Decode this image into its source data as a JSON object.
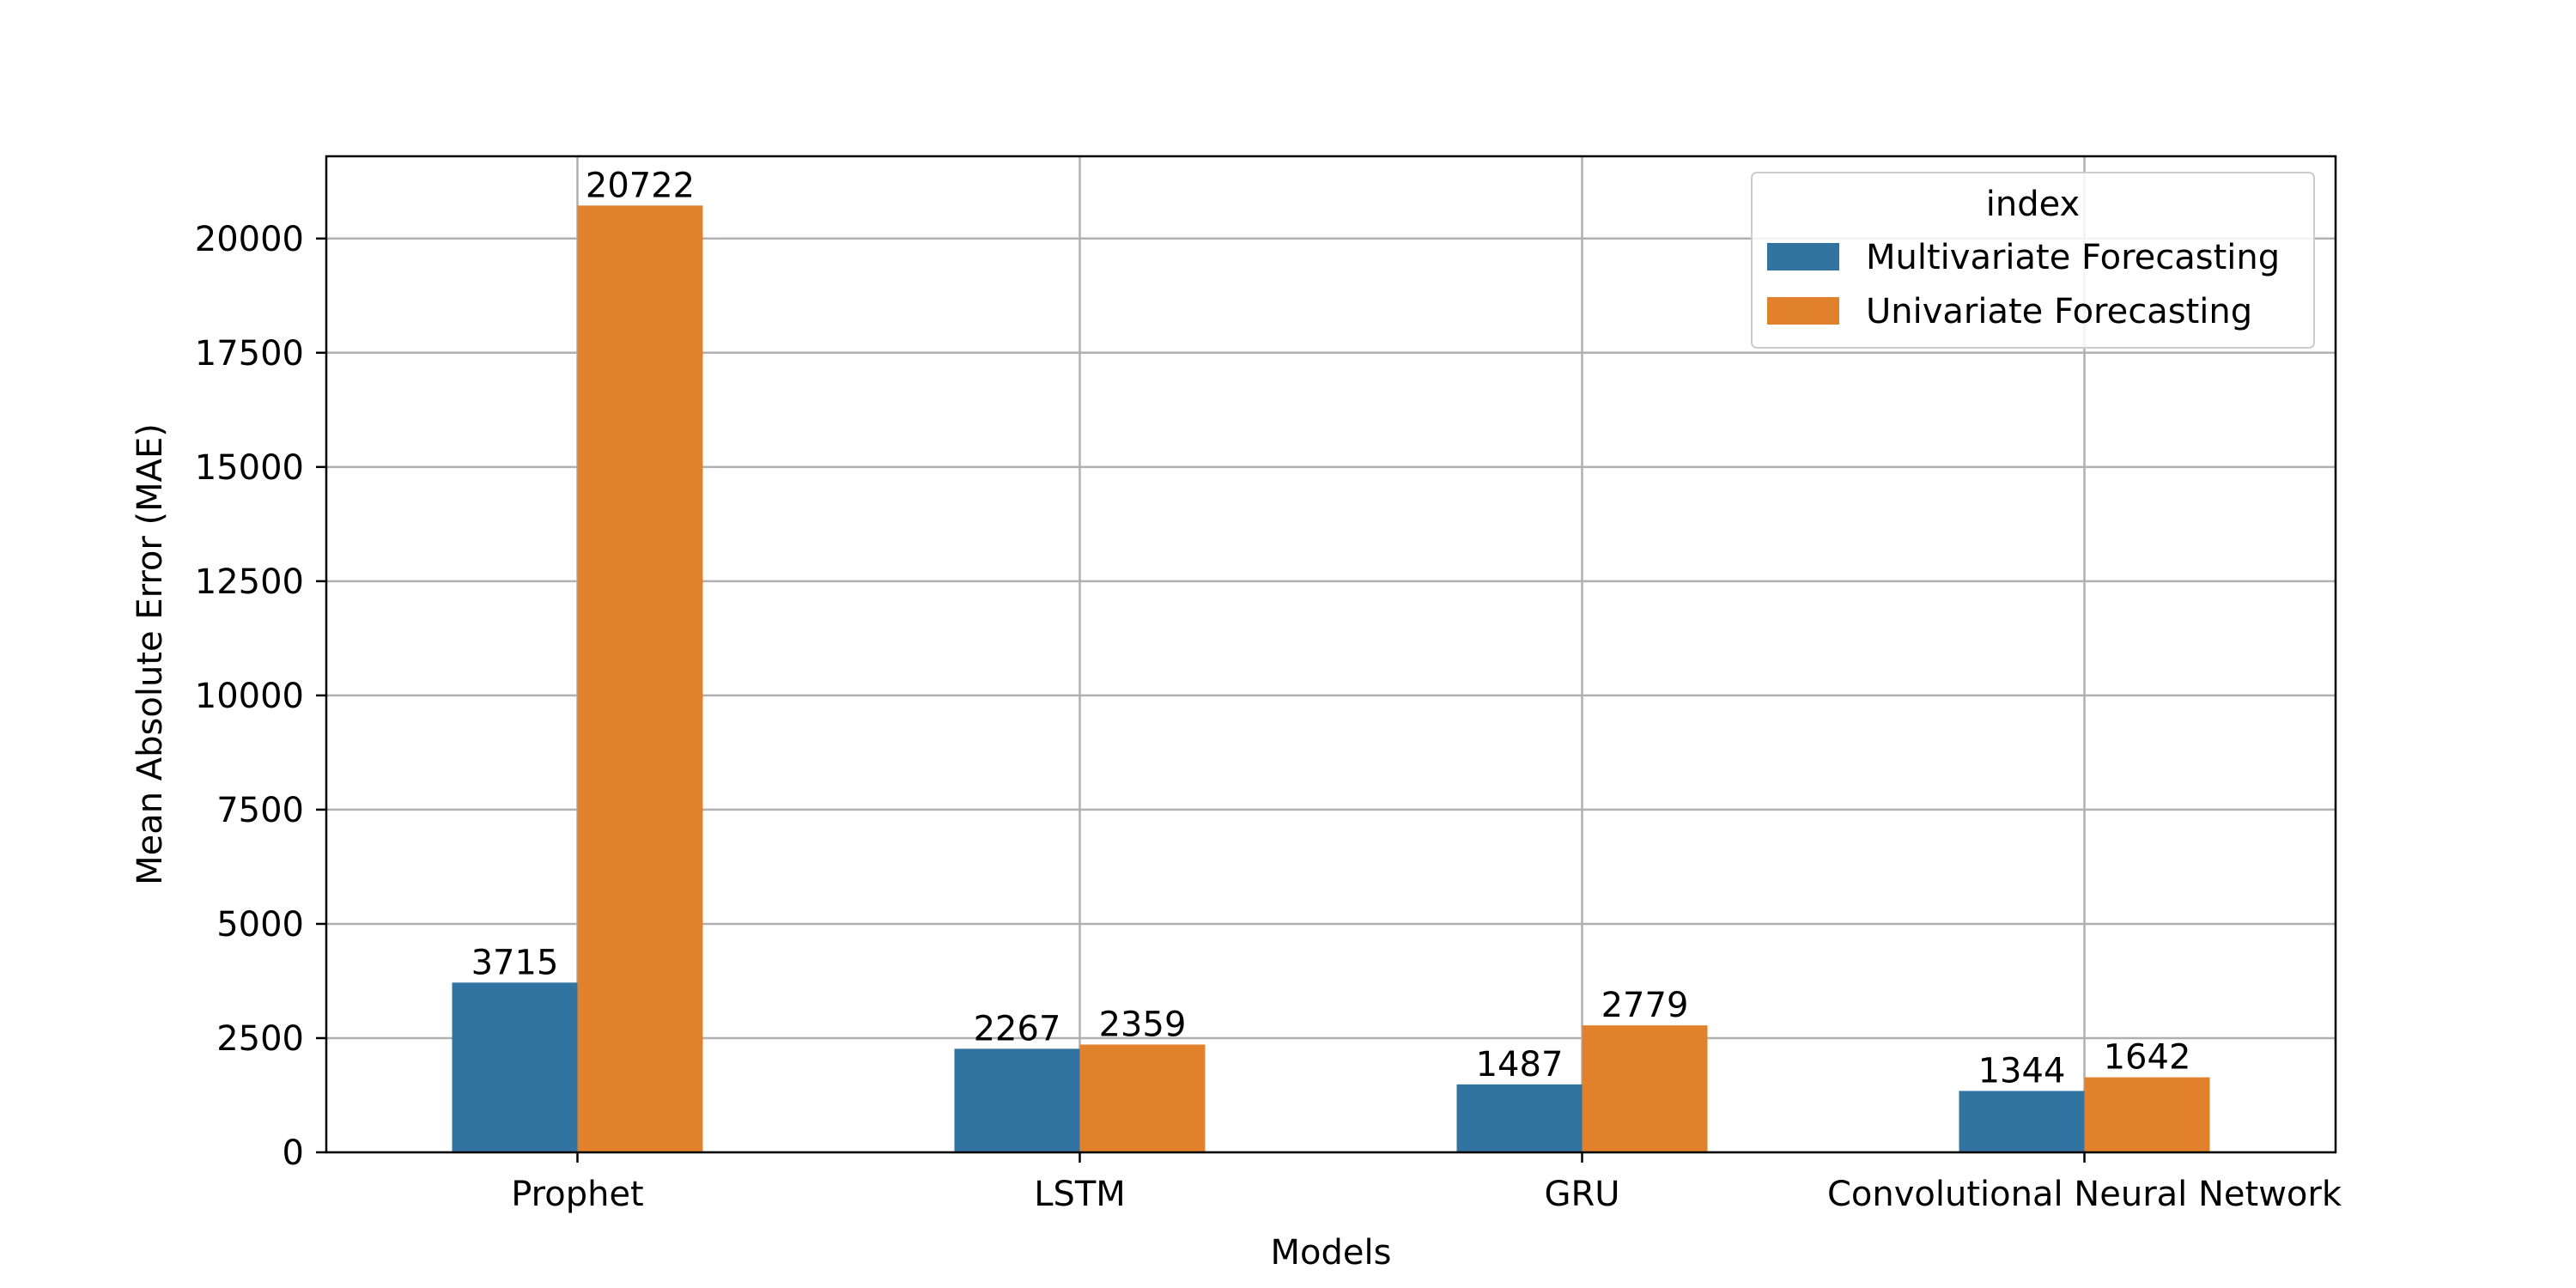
{
  "chart_data": {
    "type": "bar",
    "title": "",
    "xlabel": "Models",
    "ylabel": "Mean Absolute Error (MAE)",
    "categories": [
      "Prophet",
      "LSTM",
      "GRU",
      "Convolutional Neural Network"
    ],
    "series": [
      {
        "name": "Multivariate Forecasting",
        "color": "#3274a1",
        "values": [
          3715,
          2267,
          1487,
          1344
        ]
      },
      {
        "name": "Univariate Forecasting",
        "color": "#e1812c",
        "values": [
          20722,
          2359,
          2779,
          1642
        ]
      }
    ],
    "ylim": [
      0,
      21800
    ],
    "yticks": [
      0,
      2500,
      5000,
      7500,
      10000,
      12500,
      15000,
      17500,
      20000
    ],
    "grid": true,
    "legend": {
      "title": "index",
      "placement": "top-right"
    }
  }
}
